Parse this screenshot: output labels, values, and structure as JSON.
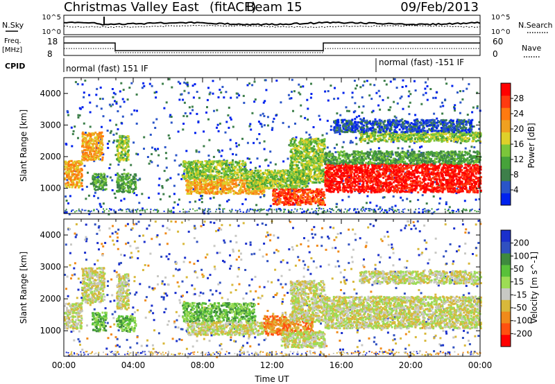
{
  "header": {
    "station": "Christmas Valley East",
    "mode": "(fitACF)",
    "beam": "Beam 15",
    "date": "09/Feb/2013"
  },
  "top_panels": {
    "nsky_label": "N.Sky",
    "nsearch_label": "N.Search",
    "noise_ticks_left": [
      "10^5",
      "10^0"
    ],
    "noise_ticks_right": [
      "10^5",
      "10^0"
    ],
    "freq_label_1": "Freq.",
    "freq_label_2": "[MHz]",
    "freq_ticks": [
      "18",
      "8"
    ],
    "nave_label": "Nave",
    "nave_ticks": [
      "60",
      "0"
    ],
    "cpid_label": "CPID",
    "cpid_1": "normal (fast) 151 IF",
    "cpid_2": "normal (fast) -151 IF"
  },
  "colors": {
    "power": [
      "#0022ee",
      "#2a55c8",
      "#3d7f4a",
      "#46a23a",
      "#7bc63a",
      "#dfd02a",
      "#f0a020",
      "#ff7a10",
      "#ff3a10",
      "#ff0000"
    ],
    "velocity": [
      "#1a2fcc",
      "#3050c0",
      "#3e8a3e",
      "#59c13a",
      "#9ddc55",
      "#c8c8c4",
      "#d8b83a",
      "#f08a1a",
      "#ff5010",
      "#ff0000"
    ]
  },
  "chart_data": [
    {
      "type": "heatmap",
      "name": "power",
      "ylabel": "Slant Range [km]",
      "yticks": [
        1000,
        2000,
        3000,
        4000
      ],
      "ylim": [
        200,
        4500
      ],
      "xlim_hours": [
        0,
        24
      ],
      "colorbar_label": "Power [dB]",
      "colorbar_ticks": [
        "4",
        "8",
        "12",
        "16",
        "20",
        "24",
        "28"
      ],
      "colorbar_range": [
        0,
        32
      ],
      "regions": [
        {
          "t0": 0.0,
          "t1": 1.0,
          "r0": 1050,
          "r1": 1900,
          "level": 6
        },
        {
          "t0": 1.0,
          "t1": 2.2,
          "r0": 1900,
          "r1": 2800,
          "level": 6
        },
        {
          "t0": 1.6,
          "t1": 2.4,
          "r0": 950,
          "r1": 1500,
          "level": 3
        },
        {
          "t0": 3.0,
          "t1": 4.1,
          "r0": 900,
          "r1": 1500,
          "level": 3
        },
        {
          "t0": 3.0,
          "t1": 3.7,
          "r0": 1900,
          "r1": 2700,
          "level": 4
        },
        {
          "t0": 6.8,
          "t1": 10.5,
          "r0": 1300,
          "r1": 1900,
          "level": 4
        },
        {
          "t0": 7.0,
          "t1": 11.5,
          "r0": 850,
          "r1": 1300,
          "level": 6
        },
        {
          "t0": 10.5,
          "t1": 14.0,
          "r0": 1000,
          "r1": 1600,
          "level": 4
        },
        {
          "t0": 12.0,
          "t1": 15.0,
          "r0": 500,
          "r1": 1000,
          "level": 8
        },
        {
          "t0": 13.0,
          "t1": 15.0,
          "r0": 1200,
          "r1": 2600,
          "level": 4
        },
        {
          "t0": 15.0,
          "t1": 24.0,
          "r0": 900,
          "r1": 1800,
          "level": 9
        },
        {
          "t0": 15.0,
          "t1": 24.0,
          "r0": 1800,
          "r1": 2200,
          "level": 3
        },
        {
          "t0": 17.0,
          "t1": 24.0,
          "r0": 2500,
          "r1": 2800,
          "level": 4
        },
        {
          "t0": 15.5,
          "t1": 23.5,
          "r0": 2800,
          "r1": 3200,
          "level": 1
        }
      ]
    },
    {
      "type": "heatmap",
      "name": "velocity",
      "ylabel": "Slant Range [km]",
      "yticks": [
        1000,
        2000,
        3000,
        4000
      ],
      "ylim": [
        200,
        4500
      ],
      "xlabel": "Time UT",
      "xticks": [
        "00:00",
        "04:00",
        "08:00",
        "12:00",
        "16:00",
        "20:00",
        "00:00"
      ],
      "xlim_hours": [
        0,
        24
      ],
      "colorbar_label": "Velocity [m s^-1]",
      "colorbar_ticks": [
        "200",
        "100",
        "50",
        "15",
        "-15",
        "-50",
        "-100",
        "-200"
      ],
      "colorbar_range": [
        -250,
        250
      ],
      "regions": [
        {
          "t0": 0.0,
          "t1": 1.0,
          "r0": 1100,
          "r1": 1900,
          "level": 5
        },
        {
          "t0": 1.0,
          "t1": 2.3,
          "r0": 1900,
          "r1": 3000,
          "level": 5
        },
        {
          "t0": 1.6,
          "t1": 2.4,
          "r0": 1000,
          "r1": 1600,
          "level": 3
        },
        {
          "t0": 3.0,
          "t1": 4.1,
          "r0": 1000,
          "r1": 1500,
          "level": 3
        },
        {
          "t0": 3.0,
          "t1": 3.7,
          "r0": 1700,
          "r1": 2800,
          "level": 5
        },
        {
          "t0": 6.8,
          "t1": 11.0,
          "r0": 1300,
          "r1": 1900,
          "level": 3
        },
        {
          "t0": 7.0,
          "t1": 11.5,
          "r0": 900,
          "r1": 1300,
          "level": 5
        },
        {
          "t0": 11.5,
          "t1": 14.3,
          "r0": 900,
          "r1": 1500,
          "level": 7
        },
        {
          "t0": 12.5,
          "t1": 15.0,
          "r0": 500,
          "r1": 1000,
          "level": 5
        },
        {
          "t0": 13.0,
          "t1": 15.0,
          "r0": 1300,
          "r1": 2600,
          "level": 5
        },
        {
          "t0": 15.0,
          "t1": 24.0,
          "r0": 1100,
          "r1": 2100,
          "level": 5
        },
        {
          "t0": 17.0,
          "t1": 24.0,
          "r0": 2500,
          "r1": 2900,
          "level": 5
        }
      ]
    }
  ]
}
